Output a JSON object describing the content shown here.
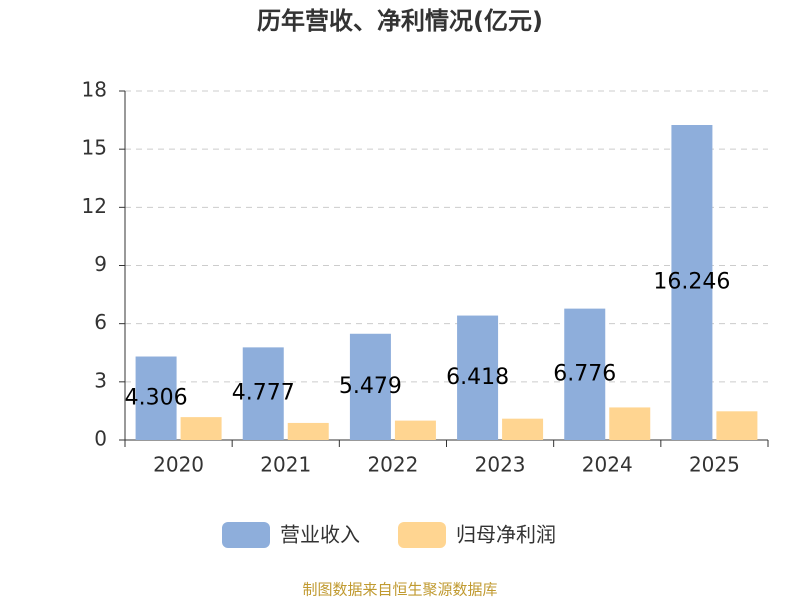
{
  "chart_data": {
    "type": "bar",
    "title": "历年营收、净利情况(亿元)",
    "categories": [
      "2020",
      "2021",
      "2022",
      "2023",
      "2024",
      "2025"
    ],
    "series": [
      {
        "name": "营业收入",
        "color": "#8eaedb",
        "values": [
          4.306,
          4.777,
          5.479,
          6.418,
          6.776,
          16.246
        ],
        "data_labels": true
      },
      {
        "name": "归母净利润",
        "color": "#ffd591",
        "values": [
          1.18,
          0.88,
          1.0,
          1.1,
          1.68,
          1.48
        ]
      }
    ],
    "ylim": [
      0,
      18
    ],
    "yticks": [
      0,
      3,
      6,
      9,
      12,
      15,
      18
    ],
    "grid": true,
    "source": "制图数据来自恒生聚源数据库"
  }
}
